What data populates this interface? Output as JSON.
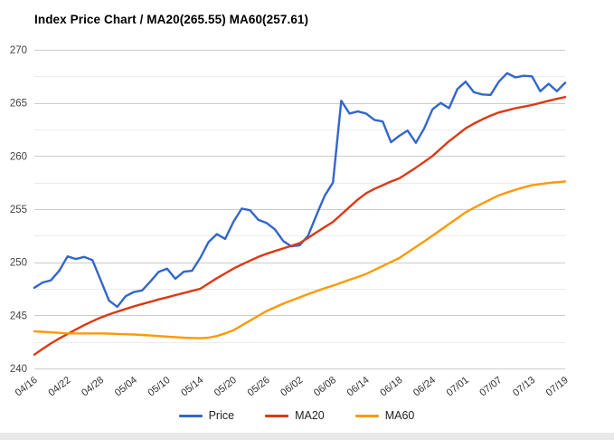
{
  "title": "Index Price Chart / MA20(265.55) MA60(257.61)",
  "legend": {
    "items": [
      {
        "label": "Price",
        "color": "#3366CC"
      },
      {
        "label": "MA20",
        "color": "#DC3912"
      },
      {
        "label": "MA60",
        "color": "#FF9900"
      }
    ]
  },
  "chart_data": {
    "type": "line",
    "title": "Index Price Chart / MA20(265.55) MA60(257.61)",
    "xlabel": "",
    "ylabel": "",
    "ylim": [
      240,
      270
    ],
    "y_major_ticks": [
      240,
      245,
      250,
      255,
      260,
      265,
      270
    ],
    "y_minor_ticks": [
      242.5,
      247.5,
      252.5,
      257.5,
      262.5,
      267.5
    ],
    "grid": {
      "major_color": "#cccccc",
      "minor_color": "#ebebeb"
    },
    "legend_position": "bottom",
    "x_tick_labels": [
      "04/16",
      "04/22",
      "04/28",
      "05/04",
      "05/10",
      "05/14",
      "05/20",
      "05/26",
      "06/02",
      "06/08",
      "06/14",
      "06/18",
      "06/24",
      "07/01",
      "07/07",
      "07/13",
      "07/19"
    ],
    "label_every_n_points": 4,
    "final_values": {
      "MA20": 265.55,
      "MA60": 257.61
    },
    "series": [
      {
        "name": "Price",
        "color": "#3366CC",
        "values": [
          247.6,
          248.1,
          248.3,
          249.2,
          250.55,
          250.3,
          250.5,
          250.2,
          248.3,
          246.4,
          245.8,
          246.8,
          247.2,
          247.35,
          248.2,
          249.1,
          249.4,
          248.45,
          249.1,
          249.2,
          250.4,
          251.9,
          252.65,
          252.2,
          253.8,
          255.05,
          254.9,
          254.0,
          253.7,
          253.1,
          252.0,
          251.5,
          251.6,
          252.5,
          254.4,
          256.25,
          257.5,
          265.2,
          264.0,
          264.2,
          264.0,
          263.4,
          263.25,
          261.3,
          261.9,
          262.4,
          261.25,
          262.6,
          264.4,
          265.0,
          264.5,
          266.3,
          267.0,
          266.0,
          265.8,
          265.75,
          267.0,
          267.8,
          267.4,
          267.55,
          267.5,
          266.1,
          266.8,
          266.1,
          266.9
        ]
      },
      {
        "name": "MA20",
        "color": "#DC3912",
        "values": [
          241.3,
          241.85,
          242.35,
          242.82,
          243.25,
          243.67,
          244.07,
          244.45,
          244.8,
          245.08,
          245.35,
          245.6,
          245.85,
          246.07,
          246.28,
          246.5,
          246.7,
          246.9,
          247.1,
          247.3,
          247.5,
          248.0,
          248.5,
          248.95,
          249.4,
          249.78,
          250.15,
          250.5,
          250.8,
          251.05,
          251.3,
          251.55,
          251.8,
          252.3,
          252.8,
          253.3,
          253.8,
          254.5,
          255.2,
          255.9,
          256.5,
          256.9,
          257.25,
          257.6,
          257.9,
          258.4,
          258.9,
          259.45,
          260.0,
          260.7,
          261.4,
          262.0,
          262.6,
          263.05,
          263.45,
          263.8,
          264.1,
          264.3,
          264.5,
          264.65,
          264.8,
          265.0,
          265.2,
          265.38,
          265.55
        ]
      },
      {
        "name": "MA60",
        "color": "#FF9900",
        "values": [
          243.5,
          243.45,
          243.4,
          243.35,
          243.3,
          243.3,
          243.3,
          243.3,
          243.3,
          243.28,
          243.25,
          243.22,
          243.2,
          243.15,
          243.1,
          243.05,
          243.0,
          242.95,
          242.9,
          242.87,
          242.85,
          242.9,
          243.05,
          243.3,
          243.6,
          244.05,
          244.5,
          244.95,
          245.4,
          245.75,
          246.1,
          246.4,
          246.7,
          247.0,
          247.28,
          247.55,
          247.8,
          248.07,
          248.35,
          248.62,
          248.9,
          249.27,
          249.65,
          250.02,
          250.4,
          250.92,
          251.45,
          251.97,
          252.5,
          253.05,
          253.6,
          254.15,
          254.7,
          255.12,
          255.53,
          255.92,
          256.3,
          256.57,
          256.82,
          257.05,
          257.25,
          257.36,
          257.46,
          257.54,
          257.61
        ]
      }
    ]
  }
}
